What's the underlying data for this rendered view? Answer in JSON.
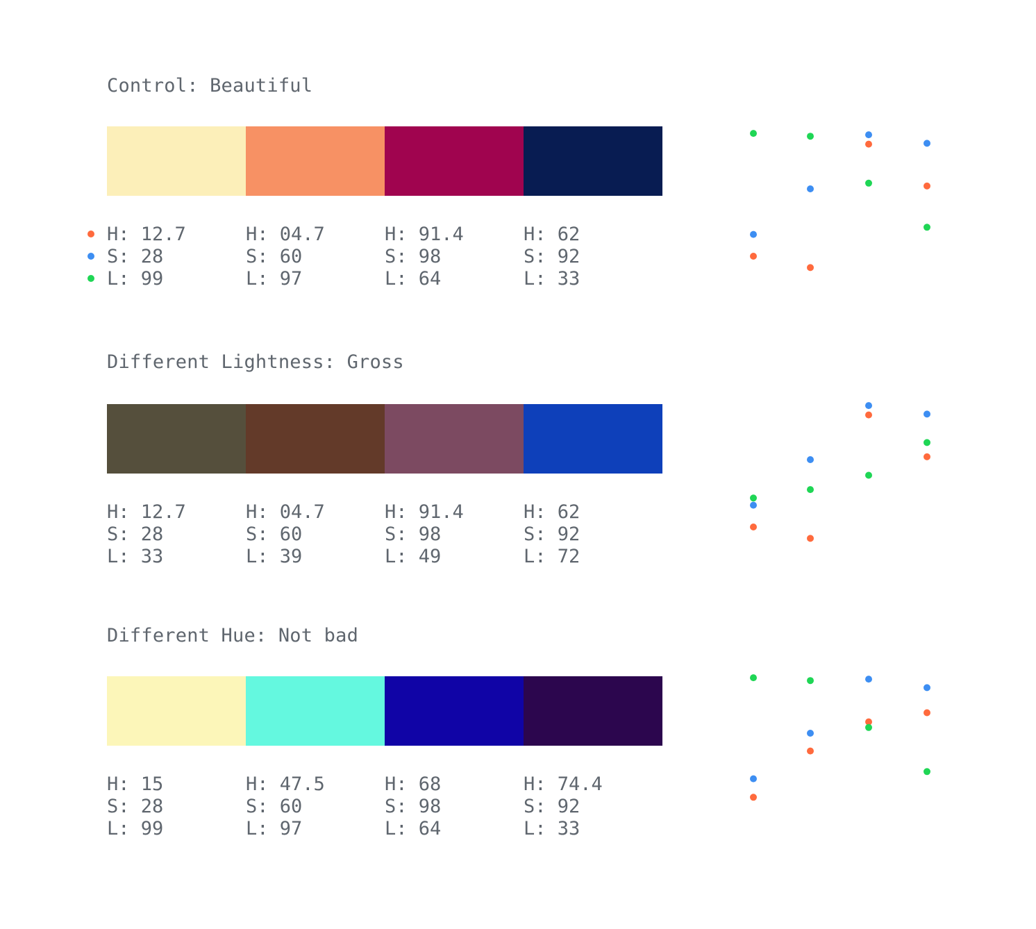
{
  "colors": {
    "hue": "#ff6a3d",
    "saturation": "#3d8ef2",
    "lightness": "#1fd655",
    "text": "#5f666e"
  },
  "legend": [
    {
      "key": "H",
      "color": "#ff6a3d"
    },
    {
      "key": "S",
      "color": "#3d8ef2"
    },
    {
      "key": "L",
      "color": "#1fd655"
    }
  ],
  "sections": [
    {
      "title": "Control: Beautiful",
      "swatches": [
        {
          "color": "#fcefb9",
          "h": "H: 12.7",
          "s": "S: 28",
          "l": "L: 99",
          "hv": 12.7,
          "sv": 28,
          "lv": 99
        },
        {
          "color": "#f79164",
          "h": "H: 04.7",
          "s": "S: 60",
          "l": "L: 97",
          "hv": 4.7,
          "sv": 60,
          "lv": 97
        },
        {
          "color": "#a0044f",
          "h": "H: 91.4",
          "s": "S: 98",
          "l": "L: 64",
          "hv": 91.4,
          "sv": 98,
          "lv": 64
        },
        {
          "color": "#081c52",
          "h": "H: 62",
          "s": "S: 92",
          "l": "L: 33",
          "hv": 62,
          "sv": 92,
          "lv": 33
        }
      ]
    },
    {
      "title": "Different Lightness: Gross",
      "swatches": [
        {
          "color": "#554f3c",
          "h": "H: 12.7",
          "s": "S: 28",
          "l": "L: 33",
          "hv": 12.7,
          "sv": 28,
          "lv": 33
        },
        {
          "color": "#633a29",
          "h": "H: 04.7",
          "s": "S: 60",
          "l": "L: 39",
          "hv": 4.7,
          "sv": 60,
          "lv": 39
        },
        {
          "color": "#7c4a61",
          "h": "H: 91.4",
          "s": "S: 98",
          "l": "L: 49",
          "hv": 91.4,
          "sv": 98,
          "lv": 49
        },
        {
          "color": "#0e40ba",
          "h": "H: 62",
          "s": "S: 92",
          "l": "L: 72",
          "hv": 62,
          "sv": 92,
          "lv": 72
        }
      ]
    },
    {
      "title": "Different Hue: Not bad",
      "swatches": [
        {
          "color": "#fcf6b9",
          "h": "H: 15",
          "s": "S: 28",
          "l": "L: 99",
          "hv": 15,
          "sv": 28,
          "lv": 99
        },
        {
          "color": "#64f8df",
          "h": "H: 47.5",
          "s": "S: 60",
          "l": "L: 97",
          "hv": 47.5,
          "sv": 60,
          "lv": 97
        },
        {
          "color": "#1004a6",
          "h": "H: 68",
          "s": "S: 98",
          "l": "L: 64",
          "hv": 68,
          "sv": 98,
          "lv": 64
        },
        {
          "color": "#2c064e",
          "h": "H: 74.4",
          "s": "S: 92",
          "l": "L: 33",
          "hv": 74.4,
          "sv": 92,
          "lv": 33
        }
      ]
    }
  ]
}
